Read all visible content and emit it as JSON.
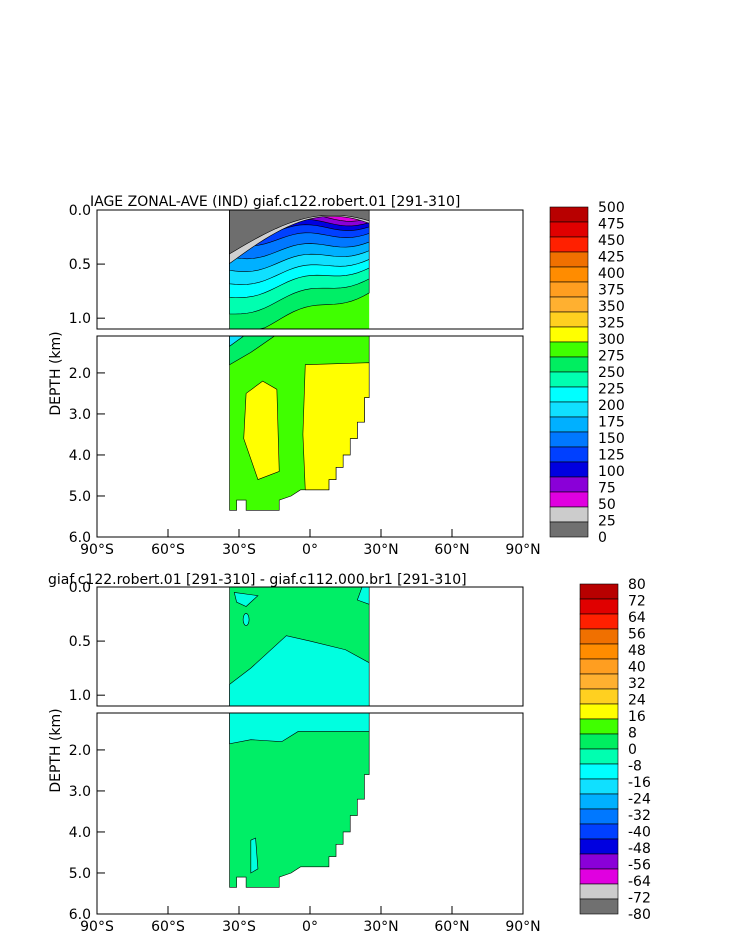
{
  "panels": [
    {
      "title": "IAGE ZONAL-AVE (IND) giaf.c122.robert.01 [291-310]",
      "ylabel": "DEPTH (km)",
      "upper_ticks": [
        "0.0",
        "0.5",
        "1.0"
      ],
      "lower_ticks": [
        "2.0",
        "3.0",
        "4.0",
        "5.0",
        "6.0"
      ],
      "x_ticks": [
        "90°S",
        "60°S",
        "30°S",
        "0°",
        "30°N",
        "60°N",
        "90°N"
      ],
      "colorbar_labels": [
        "500",
        "475",
        "450",
        "425",
        "400",
        "375",
        "350",
        "325",
        "300",
        "275",
        "250",
        "225",
        "200",
        "175",
        "150",
        "125",
        "100",
        "75",
        "50",
        "25",
        "0"
      ]
    },
    {
      "title": "giaf.c122.robert.01 [291-310] - giaf.c112.000.br1 [291-310]",
      "ylabel": "DEPTH (km)",
      "upper_ticks": [
        "0.0",
        "0.5",
        "1.0"
      ],
      "lower_ticks": [
        "2.0",
        "3.0",
        "4.0",
        "5.0",
        "6.0"
      ],
      "x_ticks": [
        "90°S",
        "60°S",
        "30°S",
        "0°",
        "30°N",
        "60°N",
        "90°N"
      ],
      "colorbar_labels": [
        "80",
        "72",
        "64",
        "56",
        "48",
        "40",
        "32",
        "24",
        "16",
        "8",
        "0",
        "-8",
        "-16",
        "-24",
        "-32",
        "-40",
        "-48",
        "-56",
        "-64",
        "-72",
        "-80"
      ]
    }
  ],
  "colors": {
    "cb": [
      "#b80000",
      "#e00000",
      "#ff2000",
      "#f07000",
      "#ff8c00",
      "#ff9e20",
      "#ffb030",
      "#ffd020",
      "#ffff00",
      "#40ff00",
      "#00ee60",
      "#00ffb0",
      "#00ffff",
      "#10e0ff",
      "#00b0ff",
      "#0078ff",
      "#0040ff",
      "#0000e0",
      "#8a00d8",
      "#e000e0",
      "#cccccc",
      "#707070"
    ],
    "grey": "#6e6e6e",
    "yellow": "#ffff00",
    "green_lime": "#44ff00",
    "green": "#00ee66",
    "cyan": "#00ffe0"
  },
  "chart_data": [
    {
      "type": "heatmap",
      "title": "IAGE ZONAL-AVE (IND) giaf.c122.robert.01 [291-310]",
      "xlabel": "",
      "ylabel": "DEPTH (km)",
      "x_range": [
        -90,
        90
      ],
      "y_range_km": [
        0,
        6
      ],
      "data_extent_lat": [
        -34,
        25
      ],
      "contour_levels": [
        0,
        25,
        50,
        75,
        100,
        125,
        150,
        175,
        200,
        225,
        250,
        275,
        300,
        325,
        350,
        375,
        400,
        425,
        450,
        475,
        500
      ],
      "features": [
        {
          "region": "surface (0-0.3 km)",
          "value": "0-25"
        },
        {
          "region": "thermocline (0.3-1.0 km)",
          "value": "50-250"
        },
        {
          "region": "deep west (2.5-4.5 km, 30S-15S)",
          "value": "300-325"
        },
        {
          "region": "deep central (1.7-4.8 km, 0-25N)",
          "value": "300-325"
        },
        {
          "region": "intermediate/bottom",
          "value": "275-300"
        }
      ]
    },
    {
      "type": "heatmap",
      "title": "giaf.c122.robert.01 [291-310] - giaf.c112.000.br1 [291-310]",
      "xlabel": "",
      "ylabel": "DEPTH (km)",
      "x_range": [
        -90,
        90
      ],
      "y_range_km": [
        0,
        6
      ],
      "data_extent_lat": [
        -34,
        25
      ],
      "contour_levels": [
        -80,
        -72,
        -64,
        -56,
        -48,
        -40,
        -32,
        -24,
        -16,
        -8,
        0,
        8,
        16,
        24,
        32,
        40,
        48,
        56,
        64,
        72,
        80
      ],
      "features": [
        {
          "region": "upper 0.5 km",
          "value": "0-8"
        },
        {
          "region": "0.5-1.8 km",
          "value": "-8-0"
        },
        {
          "region": "below 1.8 km",
          "value": "0-8"
        },
        {
          "region": "small patch 4.2-5.0 km near 25S",
          "value": "-8-0"
        }
      ]
    }
  ]
}
